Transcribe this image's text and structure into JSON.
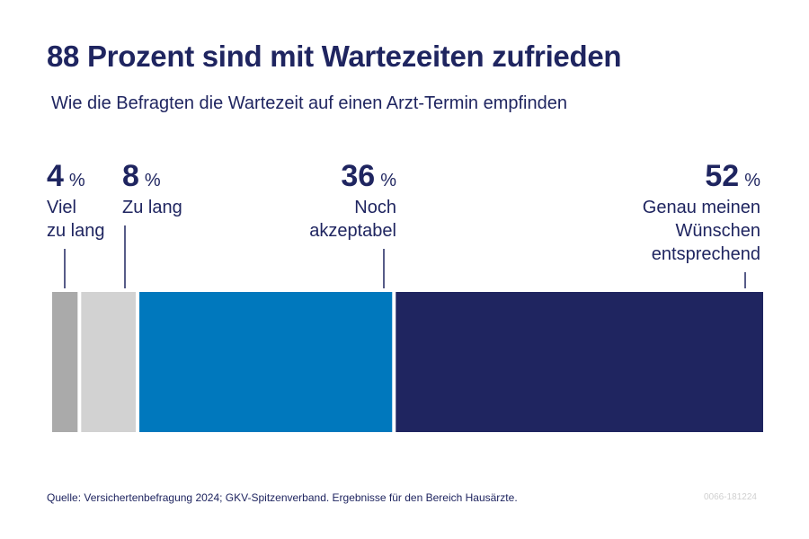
{
  "title": "88 Prozent sind mit Wartezeiten zufrieden",
  "subtitle": "Wie die Befragten die Wartezeit auf einen Arzt-Termin empfinden",
  "source": "Quelle: Versichertenbefragung 2024; GKV-Spitzenverband. Ergebnisse für den Bereich Hausärzte.",
  "code": "0066-181224",
  "chart_data": {
    "type": "bar",
    "orientation": "horizontal-stacked",
    "unit": "%",
    "categories": [
      {
        "name": "Viel zu lang",
        "lines": [
          "Viel",
          "zu lang"
        ],
        "value": 4,
        "color": "#aaaaaa"
      },
      {
        "name": "Zu lang",
        "lines": [
          "Zu lang"
        ],
        "value": 8,
        "color": "#d2d2d2"
      },
      {
        "name": "Noch akzeptabel",
        "lines": [
          "Noch",
          "akzeptabel"
        ],
        "value": 36,
        "color": "#0078bd"
      },
      {
        "name": "Genau meinen Wünschen entsprechend",
        "lines": [
          "Genau meinen",
          "Wünschen",
          "entsprechend"
        ],
        "value": 52,
        "color": "#1f2560"
      }
    ]
  }
}
